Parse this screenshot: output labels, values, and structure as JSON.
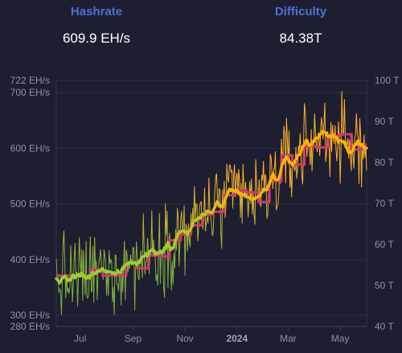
{
  "stats": {
    "hashrate": {
      "label": "Hashrate",
      "value": "609.9 EH/s"
    },
    "difficulty": {
      "label": "Difficulty",
      "value": "84.38T"
    }
  },
  "colors": {
    "background": "#1d1f31",
    "stat_label": "#4e6fd4",
    "grid": "#2d3046",
    "tick_text": "#8d8fa4",
    "difficulty_line": "#d6366c",
    "hashrate_low": "#7fae3c",
    "hashrate_high": "#ffb02a",
    "hashrate_avg_low": "#9acd32",
    "hashrate_avg_high": "#ffb300"
  },
  "chart_data": {
    "type": "line",
    "title": "",
    "x": {
      "type": "date",
      "range": [
        "2023-06-03",
        "2024-06-01"
      ],
      "ticks": [
        {
          "date": "2023-07-01",
          "label": "Jul",
          "bold": false
        },
        {
          "date": "2023-09-01",
          "label": "Sep",
          "bold": false
        },
        {
          "date": "2023-11-01",
          "label": "Nov",
          "bold": false
        },
        {
          "date": "2024-01-01",
          "label": "2024",
          "bold": true
        },
        {
          "date": "2024-03-01",
          "label": "Mar",
          "bold": false
        },
        {
          "date": "2024-05-01",
          "label": "May",
          "bold": false
        }
      ]
    },
    "y_left": {
      "unit": "EH/s",
      "range": [
        280,
        722
      ],
      "ticks": [
        {
          "value": 280,
          "label": "280 EH/s"
        },
        {
          "value": 300,
          "label": "300 EH/s"
        },
        {
          "value": 400,
          "label": "400 EH/s"
        },
        {
          "value": 500,
          "label": "500 EH/s"
        },
        {
          "value": 600,
          "label": "600 EH/s"
        },
        {
          "value": 700,
          "label": "700 EH/s"
        },
        {
          "value": 722,
          "label": "722 EH/s"
        }
      ]
    },
    "y_right": {
      "unit": "T",
      "range": [
        40,
        100
      ],
      "ticks": [
        {
          "value": 40,
          "label": "40 T"
        },
        {
          "value": 50,
          "label": "50 T"
        },
        {
          "value": 60,
          "label": "60 T"
        },
        {
          "value": 70,
          "label": "70 T"
        },
        {
          "value": 80,
          "label": "80 T"
        },
        {
          "value": 90,
          "label": "90 T"
        },
        {
          "value": 100,
          "label": "100 T"
        }
      ]
    },
    "grid": true,
    "hashrate_anchors": [
      {
        "date": "2023-06-03",
        "value": 363
      },
      {
        "date": "2023-07-01",
        "value": 367
      },
      {
        "date": "2023-08-01",
        "value": 378
      },
      {
        "date": "2023-09-01",
        "value": 395
      },
      {
        "date": "2023-10-01",
        "value": 420
      },
      {
        "date": "2023-11-01",
        "value": 450
      },
      {
        "date": "2023-12-01",
        "value": 488
      },
      {
        "date": "2024-01-01",
        "value": 515
      },
      {
        "date": "2024-01-25",
        "value": 508
      },
      {
        "date": "2024-02-15",
        "value": 550
      },
      {
        "date": "2024-03-05",
        "value": 578
      },
      {
        "date": "2024-03-25",
        "value": 610
      },
      {
        "date": "2024-04-15",
        "value": 630
      },
      {
        "date": "2024-04-25",
        "value": 625
      },
      {
        "date": "2024-05-10",
        "value": 590
      },
      {
        "date": "2024-05-25",
        "value": 612
      },
      {
        "date": "2024-06-01",
        "value": 605
      }
    ],
    "hashrate_spread": 38,
    "difficulty_steps": [
      {
        "date": "2023-06-03",
        "value": 52.35
      },
      {
        "date": "2023-06-16",
        "value": 52.39
      },
      {
        "date": "2023-06-30",
        "value": 52.16
      },
      {
        "date": "2023-07-13",
        "value": 53.91
      },
      {
        "date": "2023-07-27",
        "value": 52.39
      },
      {
        "date": "2023-08-10",
        "value": 52.39
      },
      {
        "date": "2023-08-24",
        "value": 55.62
      },
      {
        "date": "2023-09-06",
        "value": 54.15
      },
      {
        "date": "2023-09-19",
        "value": 57.32
      },
      {
        "date": "2023-10-02",
        "value": 57.12
      },
      {
        "date": "2023-10-14",
        "value": 61.03
      },
      {
        "date": "2023-10-27",
        "value": 62.46
      },
      {
        "date": "2023-11-08",
        "value": 64.68
      },
      {
        "date": "2023-11-21",
        "value": 67.31
      },
      {
        "date": "2023-12-04",
        "value": 67.96
      },
      {
        "date": "2023-12-17",
        "value": 72.01
      },
      {
        "date": "2023-12-30",
        "value": 73.2
      },
      {
        "date": "2024-01-12",
        "value": 72.72
      },
      {
        "date": "2024-01-26",
        "value": 70.34
      },
      {
        "date": "2024-02-08",
        "value": 75.5
      },
      {
        "date": "2024-02-22",
        "value": 81.73
      },
      {
        "date": "2024-03-06",
        "value": 79.5
      },
      {
        "date": "2024-03-20",
        "value": 83.95
      },
      {
        "date": "2024-04-03",
        "value": 83.68
      },
      {
        "date": "2024-04-17",
        "value": 86.39
      },
      {
        "date": "2024-04-30",
        "value": 86.87
      },
      {
        "date": "2024-05-14",
        "value": 83.15
      },
      {
        "date": "2024-05-28",
        "value": 84.38
      }
    ]
  }
}
